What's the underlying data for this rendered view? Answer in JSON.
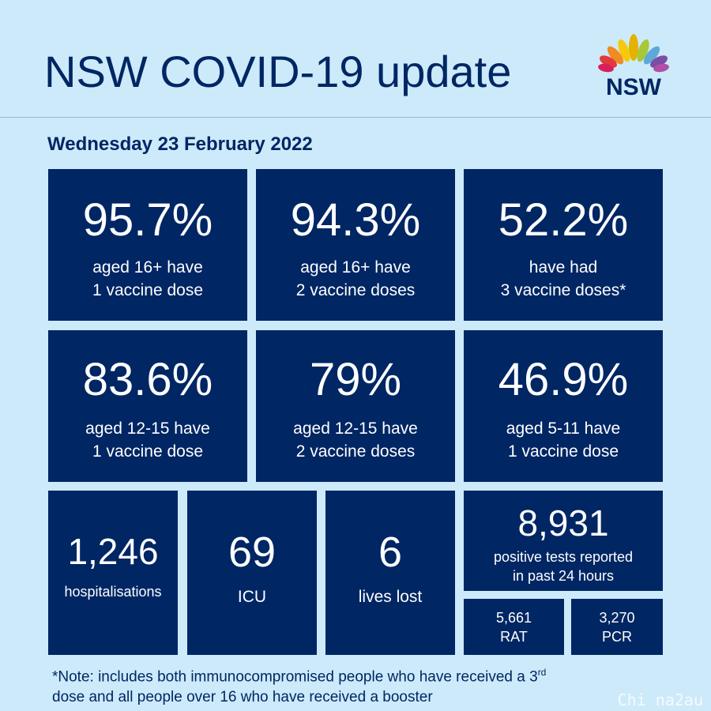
{
  "header": {
    "title": "NSW COVID-19 update",
    "logo_text": "NSW"
  },
  "date": "Wednesday 23 February 2022",
  "tiles": [
    {
      "value": "95.7%",
      "line1": "aged 16+ have",
      "line2": "1 vaccine dose"
    },
    {
      "value": "94.3%",
      "line1": "aged 16+ have",
      "line2": "2 vaccine doses"
    },
    {
      "value": "52.2%",
      "line1": "have had",
      "line2": "3 vaccine doses*"
    },
    {
      "value": "83.6%",
      "line1": "aged 12-15 have",
      "line2": "1 vaccine dose"
    },
    {
      "value": "79%",
      "line1": "aged 12-15 have",
      "line2": "2 vaccine doses"
    },
    {
      "value": "46.9%",
      "line1": "aged 5-11 have",
      "line2": "1 vaccine dose"
    }
  ],
  "stats": {
    "hospitalisations": {
      "value": "1,246",
      "label": "hospitalisations"
    },
    "icu": {
      "value": "69",
      "label": "ICU"
    },
    "deaths": {
      "value": "6",
      "label": "lives lost"
    },
    "positive": {
      "value": "8,931",
      "line1": "positive tests reported",
      "line2": "in past 24 hours"
    },
    "rat": {
      "value": "5,661",
      "label": "RAT"
    },
    "pcr": {
      "value": "3,270",
      "label": "PCR"
    }
  },
  "note": {
    "part1": "*Note: includes both immunocompromised  people who have received a 3",
    "sup": "rd",
    "part2": "dose and all people over 16 who have received a booster"
  },
  "watermark": "Chi na2au",
  "colors": {
    "background": "#cdeafa",
    "tile": "#002664",
    "text": "#002664"
  }
}
